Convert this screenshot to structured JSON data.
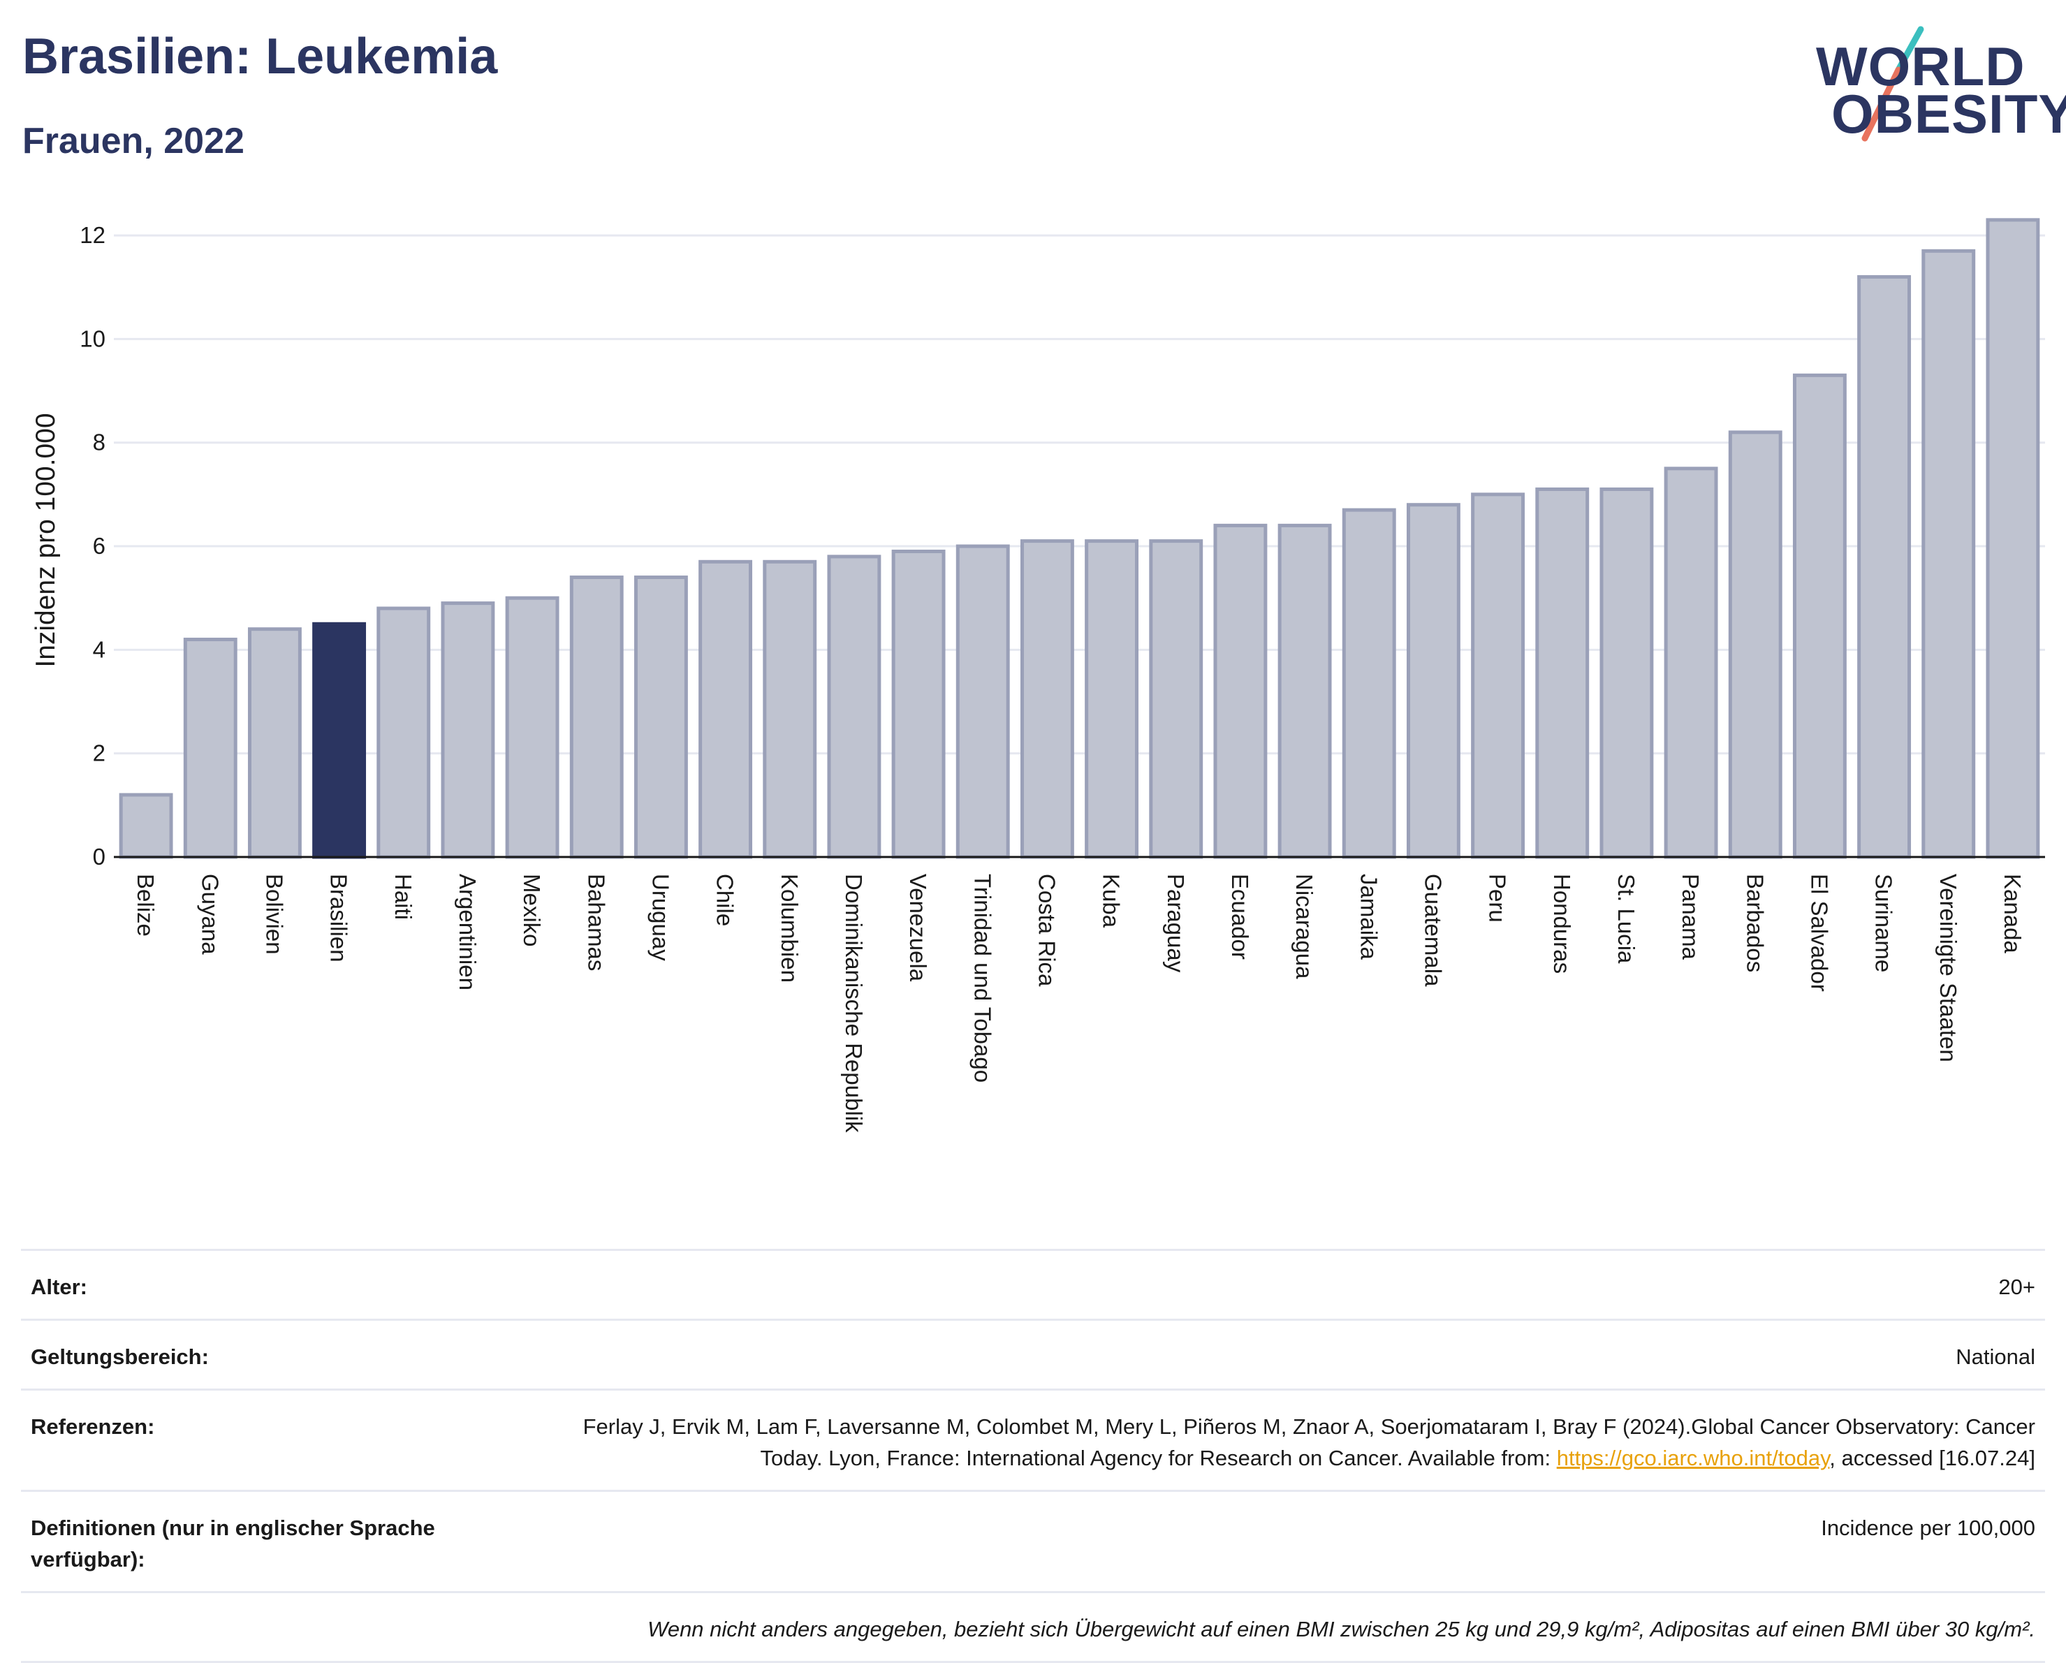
{
  "header": {
    "title": "Brasilien: Leukemia",
    "subtitle": "Frauen, 2022"
  },
  "logo": {
    "line1": "WORLD",
    "line2": "OBESITY"
  },
  "chart_data": {
    "type": "bar",
    "ylabel": "Inzidenz pro 100.000",
    "xlabel": "",
    "ylim": [
      0,
      12.5
    ],
    "yticks": [
      0,
      2,
      4,
      6,
      8,
      10,
      12
    ],
    "grid": true,
    "highlight": "Brasilien",
    "colors": {
      "bar": "#bfc3d0",
      "bar_edge": "#9aa0b8",
      "highlight": "#2b3561",
      "grid": "#e6e8f0"
    },
    "categories": [
      "Belize",
      "Guyana",
      "Bolivien",
      "Brasilien",
      "Haiti",
      "Argentinien",
      "Mexiko",
      "Bahamas",
      "Uruguay",
      "Chile",
      "Kolumbien",
      "Dominikanische Republik",
      "Venezuela",
      "Trinidad und Tobago",
      "Costa Rica",
      "Kuba",
      "Paraguay",
      "Ecuador",
      "Nicaragua",
      "Jamaika",
      "Guatemala",
      "Peru",
      "Honduras",
      "St. Lucia",
      "Panama",
      "Barbados",
      "El Salvador",
      "Suriname",
      "Vereinigte Staaten",
      "Kanada"
    ],
    "values": [
      1.2,
      4.2,
      4.4,
      4.5,
      4.8,
      4.9,
      5.0,
      5.4,
      5.4,
      5.7,
      5.7,
      5.8,
      5.9,
      6.0,
      6.1,
      6.1,
      6.1,
      6.4,
      6.4,
      6.7,
      6.8,
      7.0,
      7.1,
      7.1,
      7.5,
      8.2,
      9.3,
      11.2,
      11.7,
      12.3
    ]
  },
  "meta": {
    "age_label": "Alter:",
    "age_value": "20+",
    "scope_label": "Geltungsbereich:",
    "scope_value": "National",
    "references_label": "Referenzen:",
    "references_text": "Ferlay J, Ervik M, Lam F, Laversanne M, Colombet M, Mery L, Piñeros M, Znaor A, Soerjomataram I, Bray F (2024).Global Cancer Observatory: Cancer Today. Lyon, France: International Agency for Research on Cancer. Available from:",
    "references_link": "https://gco.iarc.who.int/today",
    "references_suffix": ", accessed [16.07.24]",
    "definitions_label": "Definitionen (nur in englischer Sprache verfügbar):",
    "definitions_value": "Incidence per 100,000",
    "note": "Wenn nicht anders angegeben, bezieht sich Übergewicht auf einen BMI zwischen 25 kg und 29,9 kg/m², Adipositas auf einen BMI über 30 kg/m²."
  }
}
